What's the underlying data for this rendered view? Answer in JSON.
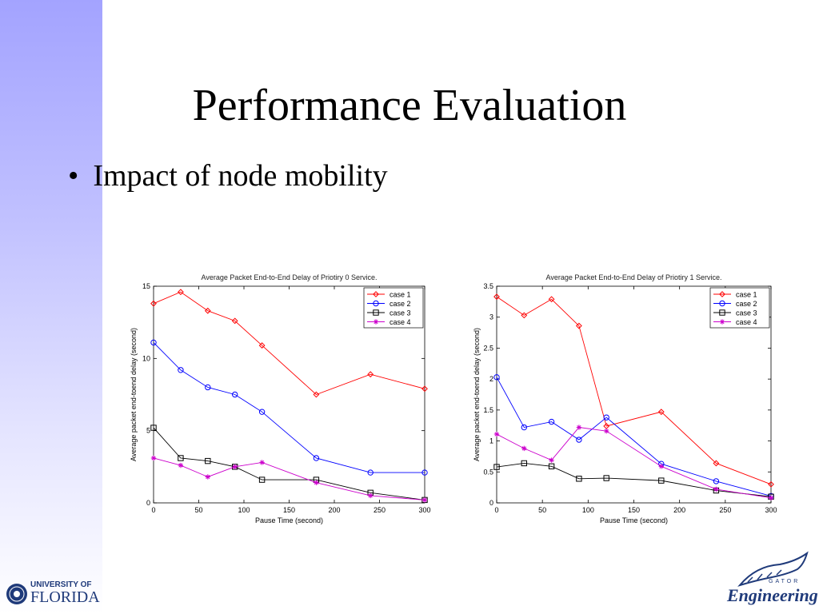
{
  "slide": {
    "title": "Performance Evaluation",
    "bullet": "Impact of node mobility",
    "bullet_symbol": "•"
  },
  "logos": {
    "left_line1": "UNIVERSITY OF",
    "left_line2": "FLORIDA",
    "right_small": "GATOR",
    "right_main": "Engineering"
  },
  "chart_data": [
    {
      "type": "line",
      "title": "Average Packet End-to-End Delay of Priotiry 0 Service.",
      "xlabel": "Pause Time (second)",
      "ylabel": "Average packet end-toend delay (second)",
      "xlim": [
        0,
        300
      ],
      "ylim": [
        0,
        15
      ],
      "xticks": [
        0,
        50,
        100,
        150,
        200,
        250,
        300
      ],
      "yticks": [
        0,
        5,
        10,
        15
      ],
      "legend_position": "top-right",
      "grid": false,
      "x": [
        0,
        30,
        60,
        90,
        120,
        180,
        240,
        300
      ],
      "series": [
        {
          "name": "case 1",
          "color": "#ff0000",
          "marker": "diamond",
          "values": [
            13.8,
            14.6,
            13.3,
            12.6,
            10.9,
            7.5,
            8.9,
            7.9
          ]
        },
        {
          "name": "case 2",
          "color": "#0000ff",
          "marker": "circle",
          "values": [
            11.1,
            9.2,
            8.0,
            7.5,
            6.3,
            3.1,
            2.1,
            2.1
          ]
        },
        {
          "name": "case 3",
          "color": "#000000",
          "marker": "square",
          "values": [
            5.2,
            3.1,
            2.9,
            2.5,
            1.6,
            1.6,
            0.7,
            0.2
          ]
        },
        {
          "name": "case 4",
          "color": "#cc00cc",
          "marker": "star",
          "values": [
            3.1,
            2.6,
            1.8,
            2.5,
            2.8,
            1.4,
            0.5,
            0.2
          ]
        }
      ]
    },
    {
      "type": "line",
      "title": "Average Packet End-to-End Delay of Priotiry 1 Service.",
      "xlabel": "Pause Time (second)",
      "ylabel": "Average packet end-toend delay (second)",
      "xlim": [
        0,
        300
      ],
      "ylim": [
        0,
        3.5
      ],
      "xticks": [
        0,
        50,
        100,
        150,
        200,
        250,
        300
      ],
      "yticks": [
        0,
        0.5,
        1,
        1.5,
        2,
        2.5,
        3,
        3.5
      ],
      "legend_position": "top-right",
      "grid": false,
      "x": [
        0,
        30,
        60,
        90,
        120,
        180,
        240,
        300
      ],
      "series": [
        {
          "name": "case 1",
          "color": "#ff0000",
          "marker": "diamond",
          "values": [
            3.33,
            3.03,
            3.29,
            2.86,
            1.24,
            1.47,
            0.64,
            0.3
          ]
        },
        {
          "name": "case 2",
          "color": "#0000ff",
          "marker": "circle",
          "values": [
            2.03,
            1.22,
            1.31,
            1.02,
            1.38,
            0.63,
            0.35,
            0.11
          ]
        },
        {
          "name": "case 3",
          "color": "#000000",
          "marker": "square",
          "values": [
            0.58,
            0.64,
            0.59,
            0.39,
            0.4,
            0.36,
            0.2,
            0.1
          ]
        },
        {
          "name": "case 4",
          "color": "#cc00cc",
          "marker": "star",
          "values": [
            1.11,
            0.88,
            0.69,
            1.22,
            1.16,
            0.59,
            0.22,
            0.08
          ]
        }
      ]
    }
  ]
}
